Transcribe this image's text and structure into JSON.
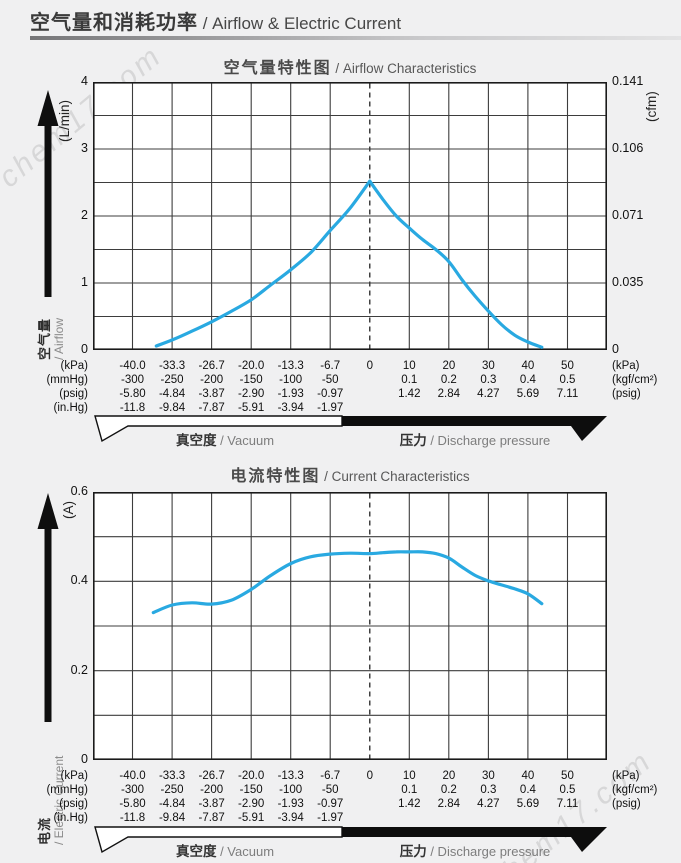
{
  "page": {
    "header_zh": "空气量和消耗功率",
    "header_en": " / Airflow & Electric Current",
    "watermark": "chem17.com"
  },
  "axis_table": {
    "left_units": [
      "(kPa)",
      "(mmHg)",
      "(psig)",
      "(in.Hg)"
    ],
    "right_units": [
      "(kPa)",
      "(kgf/cm²)",
      "(psig)"
    ],
    "vacuum_cols": [
      {
        "kpa": "-40.0",
        "mmhg": "-300",
        "psig": "-5.80",
        "inhg": "-11.8"
      },
      {
        "kpa": "-33.3",
        "mmhg": "-250",
        "psig": "-4.84",
        "inhg": "-9.84"
      },
      {
        "kpa": "-26.7",
        "mmhg": "-200",
        "psig": "-3.87",
        "inhg": "-7.87"
      },
      {
        "kpa": "-20.0",
        "mmhg": "-150",
        "psig": "-2.90",
        "inhg": "-5.91"
      },
      {
        "kpa": "-13.3",
        "mmhg": "-100",
        "psig": "-1.93",
        "inhg": "-3.94"
      },
      {
        "kpa": "-6.7",
        "mmhg": "-50",
        "psig": "-0.97",
        "inhg": "-1.97"
      }
    ],
    "zero_label": "0",
    "pressure_cols": [
      {
        "kpa": "10",
        "kgf": "0.1",
        "psig": "1.42"
      },
      {
        "kpa": "20",
        "kgf": "0.2",
        "psig": "2.84"
      },
      {
        "kpa": "30",
        "kgf": "0.3",
        "psig": "4.27"
      },
      {
        "kpa": "40",
        "kgf": "0.4",
        "psig": "5.69"
      },
      {
        "kpa": "50",
        "kgf": "0.5",
        "psig": "7.11"
      }
    ],
    "vacuum_zh": "真空度",
    "vacuum_en": " / Vacuum",
    "pressure_zh": "压力",
    "pressure_en": " / Discharge pressure"
  },
  "chart_data": [
    {
      "type": "line",
      "title_zh": "空气量特性图",
      "title_en": " / Airflow Characteristics",
      "ylabel_zh": "空气量",
      "ylabel_en": "/ Airflow",
      "y_unit_left": "(L/min)",
      "y_unit_right": "(cfm)",
      "ylim": [
        0,
        4
      ],
      "grid_step_y": 0.5,
      "y_ticks_left": [
        "4",
        "3",
        "2",
        "1",
        "0"
      ],
      "y_ticks_right": [
        "0.141",
        "0.106",
        "0.071",
        "0.035",
        "0"
      ],
      "x_ticks_kpa": [
        -40.0,
        -33.3,
        -26.7,
        -20.0,
        -13.3,
        -6.7,
        0,
        10,
        20,
        30,
        40,
        50
      ],
      "dashed_line_at_kpa": 0,
      "legend": "none",
      "series": [
        {
          "name": "airflow (L/min) vs pressure (kPa)",
          "color": "#29a9e1",
          "sharp_peak_at_x": 0,
          "points": [
            [
              -36,
              0.06
            ],
            [
              -33.3,
              0.15
            ],
            [
              -30,
              0.28
            ],
            [
              -26.7,
              0.42
            ],
            [
              -23.3,
              0.58
            ],
            [
              -20,
              0.75
            ],
            [
              -16.7,
              0.97
            ],
            [
              -13.3,
              1.2
            ],
            [
              -10,
              1.45
            ],
            [
              -6.7,
              1.78
            ],
            [
              -3.3,
              2.12
            ],
            [
              0,
              2.52
            ],
            [
              3.3,
              2.25
            ],
            [
              6.7,
              2.0
            ],
            [
              10,
              1.82
            ],
            [
              13.3,
              1.65
            ],
            [
              16.7,
              1.5
            ],
            [
              20,
              1.32
            ],
            [
              23.3,
              1.05
            ],
            [
              26.7,
              0.8
            ],
            [
              30,
              0.58
            ],
            [
              33.3,
              0.38
            ],
            [
              36.7,
              0.22
            ],
            [
              40,
              0.12
            ],
            [
              43.5,
              0.04
            ]
          ]
        }
      ]
    },
    {
      "type": "line",
      "title_zh": "电流特性图",
      "title_en": " / Current Characteristics",
      "ylabel_zh": "电流",
      "ylabel_en": "/ Electric Current",
      "y_unit_left": "(A)",
      "y_unit_right": "",
      "ylim": [
        0,
        0.6
      ],
      "grid_step_y": 0.1,
      "y_ticks_left": [
        "0.6",
        "0.4",
        "0.2",
        "0"
      ],
      "y_ticks_right": [],
      "x_ticks_kpa": [
        -40.0,
        -33.3,
        -26.7,
        -20.0,
        -13.3,
        -6.7,
        0,
        10,
        20,
        30,
        40,
        50
      ],
      "dashed_line_at_kpa": 0,
      "legend": "none",
      "series": [
        {
          "name": "electric current (A) vs pressure (kPa)",
          "color": "#29a9e1",
          "points": [
            [
              -36.5,
              0.33
            ],
            [
              -33.3,
              0.347
            ],
            [
              -30,
              0.352
            ],
            [
              -26.7,
              0.349
            ],
            [
              -23.3,
              0.358
            ],
            [
              -20,
              0.382
            ],
            [
              -16.7,
              0.413
            ],
            [
              -13.3,
              0.44
            ],
            [
              -10,
              0.455
            ],
            [
              -6.7,
              0.461
            ],
            [
              -3.3,
              0.463
            ],
            [
              0,
              0.462
            ],
            [
              3.3,
              0.464
            ],
            [
              6.7,
              0.466
            ],
            [
              10,
              0.466
            ],
            [
              13.3,
              0.466
            ],
            [
              16.7,
              0.462
            ],
            [
              20,
              0.452
            ],
            [
              23.3,
              0.432
            ],
            [
              26.7,
              0.413
            ],
            [
              30,
              0.401
            ],
            [
              33.3,
              0.392
            ],
            [
              36.7,
              0.383
            ],
            [
              40,
              0.372
            ],
            [
              43.5,
              0.35
            ]
          ]
        }
      ]
    }
  ]
}
